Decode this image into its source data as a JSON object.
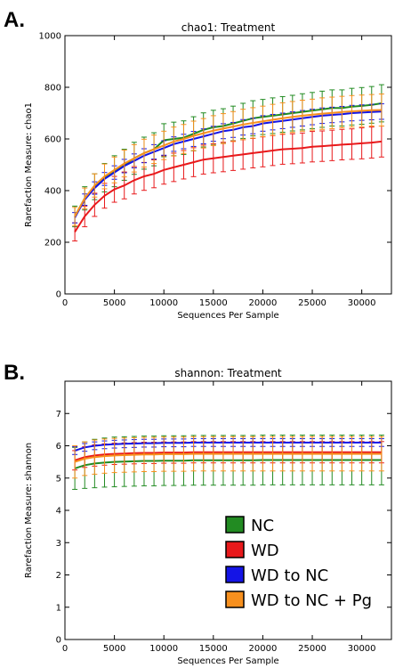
{
  "chart_data": [
    {
      "panel_label": "A.",
      "type": "line",
      "title": "chao1: Treatment",
      "xlabel": "Sequences Per Sample",
      "ylabel": "Rarefaction Measure: chao1",
      "xlim": [
        0,
        33000
      ],
      "ylim": [
        0,
        1000
      ],
      "xticks": [
        0,
        5000,
        10000,
        15000,
        20000,
        25000,
        30000
      ],
      "yticks": [
        0,
        200,
        400,
        600,
        800,
        1000
      ],
      "grid": false,
      "error_bars": true,
      "x": [
        1000,
        2000,
        3000,
        4000,
        5000,
        6000,
        7000,
        8000,
        9000,
        10000,
        11000,
        12000,
        13000,
        14000,
        15000,
        16000,
        17000,
        18000,
        19000,
        20000,
        21000,
        22000,
        23000,
        24000,
        25000,
        26000,
        27000,
        28000,
        29000,
        30000,
        31000,
        32000
      ],
      "series": [
        {
          "name": "NC",
          "color": "#228b22",
          "values": [
            300,
            370,
            415,
            450,
            475,
            500,
            525,
            545,
            560,
            595,
            600,
            605,
            620,
            635,
            645,
            650,
            660,
            670,
            680,
            685,
            690,
            695,
            700,
            705,
            710,
            715,
            720,
            720,
            725,
            728,
            732,
            738
          ],
          "errors": [
            40,
            45,
            50,
            55,
            60,
            60,
            62,
            62,
            64,
            64,
            65,
            65,
            66,
            66,
            66,
            67,
            67,
            68,
            68,
            68,
            69,
            69,
            69,
            70,
            70,
            70,
            70,
            70,
            71,
            71,
            71,
            72
          ]
        },
        {
          "name": "WD",
          "color": "#e8191b",
          "values": [
            240,
            300,
            345,
            380,
            405,
            420,
            440,
            455,
            465,
            480,
            490,
            500,
            510,
            520,
            525,
            530,
            535,
            540,
            545,
            550,
            555,
            560,
            562,
            565,
            570,
            572,
            575,
            578,
            580,
            583,
            586,
            590
          ],
          "errors": [
            35,
            40,
            45,
            48,
            50,
            52,
            53,
            54,
            54,
            55,
            55,
            55,
            56,
            56,
            56,
            57,
            57,
            57,
            57,
            58,
            58,
            58,
            58,
            58,
            59,
            59,
            59,
            59,
            59,
            60,
            60,
            60
          ]
        },
        {
          "name": "WD to NC",
          "color": "#1414e6",
          "values": [
            295,
            365,
            410,
            445,
            470,
            495,
            515,
            535,
            550,
            565,
            580,
            590,
            600,
            610,
            620,
            630,
            635,
            645,
            650,
            660,
            665,
            670,
            675,
            680,
            685,
            690,
            693,
            696,
            700,
            702,
            704,
            706
          ],
          "errors": [
            20,
            22,
            24,
            25,
            26,
            26,
            27,
            27,
            28,
            28,
            28,
            28,
            29,
            29,
            29,
            29,
            29,
            30,
            30,
            30,
            30,
            30,
            30,
            30,
            30,
            30,
            30,
            30,
            30,
            30,
            30,
            30
          ]
        },
        {
          "name": "WD to NC + Pg",
          "color": "#f7901e",
          "values": [
            300,
            370,
            420,
            455,
            480,
            505,
            525,
            545,
            560,
            575,
            590,
            600,
            612,
            622,
            632,
            640,
            648,
            656,
            662,
            668,
            674,
            680,
            685,
            690,
            694,
            698,
            701,
            704,
            707,
            709,
            711,
            712
          ],
          "errors": [
            35,
            40,
            45,
            48,
            50,
            52,
            53,
            54,
            55,
            55,
            56,
            56,
            57,
            57,
            58,
            58,
            58,
            59,
            59,
            59,
            60,
            60,
            60,
            60,
            60,
            61,
            61,
            61,
            61,
            61,
            61,
            62
          ]
        }
      ]
    },
    {
      "panel_label": "B.",
      "type": "line",
      "title": "shannon: Treatment",
      "xlabel": "Sequences Per Sample",
      "ylabel": "Rarefaction Measure: shannon",
      "xlim": [
        0,
        33000
      ],
      "ylim": [
        0,
        8
      ],
      "xticks": [
        0,
        5000,
        10000,
        15000,
        20000,
        25000,
        30000
      ],
      "yticks": [
        0,
        1,
        2,
        3,
        4,
        5,
        6,
        7
      ],
      "grid": false,
      "error_bars": true,
      "legend_position": "bottom-right",
      "x": [
        1000,
        2000,
        3000,
        4000,
        5000,
        6000,
        7000,
        8000,
        9000,
        10000,
        11000,
        12000,
        13000,
        14000,
        15000,
        16000,
        17000,
        18000,
        19000,
        20000,
        21000,
        22000,
        23000,
        24000,
        25000,
        26000,
        27000,
        28000,
        29000,
        30000,
        31000,
        32000
      ],
      "series": [
        {
          "name": "NC",
          "color": "#228b22",
          "values": [
            5.3,
            5.4,
            5.45,
            5.48,
            5.5,
            5.51,
            5.52,
            5.53,
            5.53,
            5.54,
            5.54,
            5.54,
            5.55,
            5.55,
            5.55,
            5.55,
            5.55,
            5.55,
            5.55,
            5.56,
            5.56,
            5.56,
            5.56,
            5.56,
            5.56,
            5.56,
            5.56,
            5.56,
            5.56,
            5.56,
            5.56,
            5.56
          ],
          "errors": [
            0.65,
            0.72,
            0.75,
            0.76,
            0.77,
            0.77,
            0.77,
            0.77,
            0.77,
            0.77,
            0.77,
            0.77,
            0.77,
            0.77,
            0.77,
            0.77,
            0.77,
            0.77,
            0.77,
            0.77,
            0.77,
            0.77,
            0.77,
            0.77,
            0.77,
            0.77,
            0.77,
            0.77,
            0.77,
            0.77,
            0.77,
            0.77
          ]
        },
        {
          "name": "WD",
          "color": "#e8191b",
          "values": [
            5.55,
            5.65,
            5.7,
            5.73,
            5.75,
            5.76,
            5.77,
            5.78,
            5.78,
            5.79,
            5.79,
            5.79,
            5.8,
            5.8,
            5.8,
            5.8,
            5.8,
            5.8,
            5.8,
            5.8,
            5.8,
            5.8,
            5.8,
            5.8,
            5.8,
            5.8,
            5.8,
            5.8,
            5.8,
            5.8,
            5.8,
            5.8
          ],
          "errors": [
            0.3,
            0.32,
            0.33,
            0.33,
            0.33,
            0.33,
            0.33,
            0.33,
            0.33,
            0.33,
            0.33,
            0.33,
            0.33,
            0.33,
            0.33,
            0.33,
            0.33,
            0.33,
            0.33,
            0.33,
            0.33,
            0.33,
            0.33,
            0.33,
            0.33,
            0.33,
            0.33,
            0.33,
            0.33,
            0.33,
            0.33,
            0.33
          ]
        },
        {
          "name": "WD to NC",
          "color": "#1414e6",
          "values": [
            5.85,
            5.95,
            6.0,
            6.03,
            6.05,
            6.06,
            6.07,
            6.08,
            6.08,
            6.09,
            6.09,
            6.09,
            6.1,
            6.1,
            6.1,
            6.1,
            6.1,
            6.1,
            6.1,
            6.1,
            6.1,
            6.1,
            6.1,
            6.1,
            6.1,
            6.1,
            6.1,
            6.1,
            6.1,
            6.1,
            6.1,
            6.1
          ],
          "errors": [
            0.12,
            0.12,
            0.12,
            0.12,
            0.12,
            0.12,
            0.12,
            0.12,
            0.12,
            0.12,
            0.12,
            0.12,
            0.12,
            0.12,
            0.12,
            0.12,
            0.12,
            0.12,
            0.12,
            0.12,
            0.12,
            0.12,
            0.12,
            0.12,
            0.12,
            0.12,
            0.12,
            0.12,
            0.12,
            0.12,
            0.12,
            0.12
          ]
        },
        {
          "name": "WD to NC + Pg",
          "color": "#f7901e",
          "values": [
            5.5,
            5.6,
            5.65,
            5.68,
            5.7,
            5.71,
            5.72,
            5.73,
            5.73,
            5.74,
            5.74,
            5.74,
            5.75,
            5.75,
            5.75,
            5.75,
            5.75,
            5.75,
            5.75,
            5.75,
            5.75,
            5.75,
            5.75,
            5.75,
            5.75,
            5.75,
            5.75,
            5.75,
            5.75,
            5.75,
            5.75,
            5.75
          ],
          "errors": [
            0.5,
            0.52,
            0.53,
            0.53,
            0.53,
            0.53,
            0.53,
            0.53,
            0.53,
            0.53,
            0.53,
            0.53,
            0.53,
            0.53,
            0.53,
            0.53,
            0.53,
            0.53,
            0.53,
            0.53,
            0.53,
            0.53,
            0.53,
            0.53,
            0.53,
            0.53,
            0.53,
            0.53,
            0.53,
            0.53,
            0.53,
            0.53
          ]
        }
      ]
    }
  ]
}
